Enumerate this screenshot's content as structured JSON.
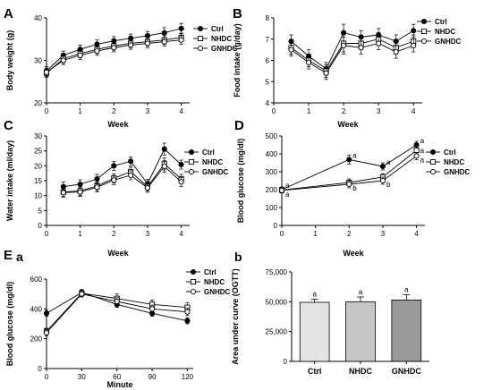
{
  "panel_labels": {
    "A": "A",
    "B": "B",
    "C": "C",
    "D": "D",
    "E": "E",
    "Ea": "a",
    "Eb": "b"
  },
  "series_names": [
    "Ctrl",
    "NHDC",
    "GNHDC"
  ],
  "chart_data": [
    {
      "id": "A",
      "type": "line",
      "xlabel": "Week",
      "ylabel": "Body weight (g)",
      "xlim": [
        0,
        4.25
      ],
      "ylim": [
        20,
        40
      ],
      "xticks": [
        0,
        1,
        2,
        3,
        4
      ],
      "yticks": [
        20,
        30,
        40
      ],
      "x": [
        0,
        0.5,
        1,
        1.5,
        2,
        2.5,
        3,
        3.5,
        4
      ],
      "series": [
        {
          "name": "Ctrl",
          "values": [
            27.5,
            31.2,
            32.6,
            33.8,
            34.6,
            35.2,
            35.8,
            36.5,
            37.5
          ],
          "err": [
            1.0,
            1.0,
            1.0,
            1.0,
            1.0,
            1.0,
            1.0,
            1.2,
            1.2
          ]
        },
        {
          "name": "NHDC",
          "values": [
            27.0,
            30.4,
            31.6,
            32.6,
            33.4,
            34.0,
            34.4,
            34.8,
            35.4
          ],
          "err": [
            1.0,
            1.0,
            1.0,
            1.0,
            1.0,
            1.0,
            1.0,
            1.0,
            1.0
          ]
        },
        {
          "name": "GNHDC",
          "values": [
            27.2,
            30.0,
            31.2,
            32.2,
            33.0,
            33.6,
            34.0,
            34.4,
            34.8
          ],
          "err": [
            1.0,
            1.0,
            1.0,
            1.0,
            1.0,
            1.0,
            1.0,
            1.0,
            1.0
          ]
        }
      ]
    },
    {
      "id": "B",
      "type": "line",
      "xlabel": "Week",
      "ylabel": "Food intake (g/day)",
      "xlim": [
        0,
        4.25
      ],
      "ylim": [
        4,
        8
      ],
      "xticks": [
        0,
        1,
        2,
        3,
        4
      ],
      "yticks": [
        4,
        5,
        6,
        7,
        8
      ],
      "x": [
        0.5,
        1,
        1.5,
        2,
        2.5,
        3,
        3.5,
        4
      ],
      "series": [
        {
          "name": "Ctrl",
          "values": [
            6.9,
            6.2,
            5.6,
            7.3,
            7.1,
            7.2,
            6.9,
            7.4
          ],
          "err": [
            0.3,
            0.3,
            0.3,
            0.4,
            0.3,
            0.3,
            0.3,
            0.3
          ]
        },
        {
          "name": "NHDC",
          "values": [
            6.6,
            6.0,
            5.5,
            6.8,
            6.8,
            7.0,
            6.6,
            6.9
          ],
          "err": [
            0.3,
            0.3,
            0.3,
            0.4,
            0.3,
            0.3,
            0.3,
            0.3
          ]
        },
        {
          "name": "GNHDC",
          "values": [
            6.5,
            5.9,
            5.4,
            6.7,
            6.6,
            6.8,
            6.4,
            6.7
          ],
          "err": [
            0.3,
            0.3,
            0.3,
            0.4,
            0.3,
            0.3,
            0.3,
            0.3
          ]
        }
      ]
    },
    {
      "id": "C",
      "type": "line",
      "xlabel": "Week",
      "ylabel": "Water intake (ml/day)",
      "xlim": [
        0,
        4.25
      ],
      "ylim": [
        0,
        30
      ],
      "xticks": [
        0,
        1,
        2,
        3,
        4
      ],
      "yticks": [
        0,
        5,
        10,
        15,
        20,
        25,
        30
      ],
      "x": [
        0.5,
        1,
        1.5,
        2,
        2.5,
        3,
        3.5,
        4
      ],
      "series": [
        {
          "name": "Ctrl",
          "values": [
            13.0,
            13.8,
            15.6,
            20.0,
            21.5,
            14.0,
            25.6,
            20.4
          ],
          "err": [
            1.5,
            1.5,
            1.5,
            1.5,
            1.5,
            1.5,
            2.0,
            1.5
          ]
        },
        {
          "name": "NHDC",
          "values": [
            11.2,
            11.6,
            13.2,
            15.8,
            18.0,
            13.0,
            20.6,
            15.6
          ],
          "err": [
            1.5,
            1.5,
            1.5,
            1.5,
            1.5,
            1.5,
            2.0,
            1.5
          ]
        },
        {
          "name": "GNHDC",
          "values": [
            11.0,
            11.2,
            12.8,
            15.2,
            16.8,
            12.6,
            19.8,
            14.6
          ],
          "err": [
            1.5,
            1.5,
            1.5,
            1.5,
            1.5,
            1.5,
            2.0,
            1.5
          ]
        }
      ]
    },
    {
      "id": "D",
      "type": "line",
      "xlabel": "Week",
      "ylabel": "Blood glucose (mg/dl)",
      "xlim": [
        0,
        4.25
      ],
      "ylim": [
        0,
        500
      ],
      "xticks": [
        0,
        1,
        2,
        3,
        4
      ],
      "yticks": [
        0,
        100,
        200,
        300,
        400,
        500
      ],
      "x": [
        0,
        2,
        3,
        4
      ],
      "series": [
        {
          "name": "Ctrl",
          "values": [
            200,
            368,
            330,
            450
          ],
          "err": [
            15,
            25,
            20,
            20
          ],
          "sig": [
            "a",
            "a",
            "a",
            "a"
          ]
        },
        {
          "name": "NHDC",
          "values": [
            198,
            240,
            270,
            420
          ],
          "err": [
            15,
            20,
            20,
            20
          ],
          "sig": [
            "",
            "",
            "",
            "a"
          ]
        },
        {
          "name": "GNHDC",
          "values": [
            196,
            230,
            250,
            388
          ],
          "err": [
            15,
            20,
            20,
            20
          ],
          "sig": [
            "a",
            "b",
            "b",
            "a"
          ]
        }
      ]
    },
    {
      "id": "Ea",
      "type": "line",
      "xlabel": "Minute",
      "ylabel": "Blood glucose (mg/dl)",
      "xlim": [
        0,
        125
      ],
      "ylim": [
        0,
        600
      ],
      "xticks": [
        0,
        30,
        60,
        90,
        120
      ],
      "yticks": [
        0,
        200,
        400,
        600
      ],
      "x": [
        0,
        30,
        60,
        90,
        120
      ],
      "series": [
        {
          "name": "Ctrl",
          "values": [
            370,
            510,
            430,
            370,
            320
          ],
          "err": [
            20,
            20,
            20,
            20,
            20
          ]
        },
        {
          "name": "NHDC",
          "values": [
            250,
            505,
            470,
            430,
            410
          ],
          "err": [
            20,
            20,
            30,
            30,
            30
          ]
        },
        {
          "name": "GNHDC",
          "values": [
            240,
            500,
            450,
            400,
            380
          ],
          "err": [
            20,
            20,
            25,
            25,
            25
          ]
        }
      ]
    },
    {
      "id": "Eb",
      "type": "bar",
      "xlabel": "",
      "ylabel": "Area under curve (OGTT)",
      "ylim": [
        0,
        75000
      ],
      "yticks": [
        0,
        25000,
        50000,
        75000
      ],
      "ytick_labels": [
        "0",
        "25,000",
        "50,000",
        "75,000"
      ],
      "categories": [
        "Ctrl",
        "NHDC",
        "GNHDC"
      ],
      "values": [
        49500,
        50000,
        51500
      ],
      "err": [
        2500,
        4000,
        4500
      ],
      "sig": [
        "a",
        "a",
        "a"
      ],
      "colors": [
        "#e3e3e3",
        "#c6c6c6",
        "#9a9a9a"
      ]
    }
  ]
}
